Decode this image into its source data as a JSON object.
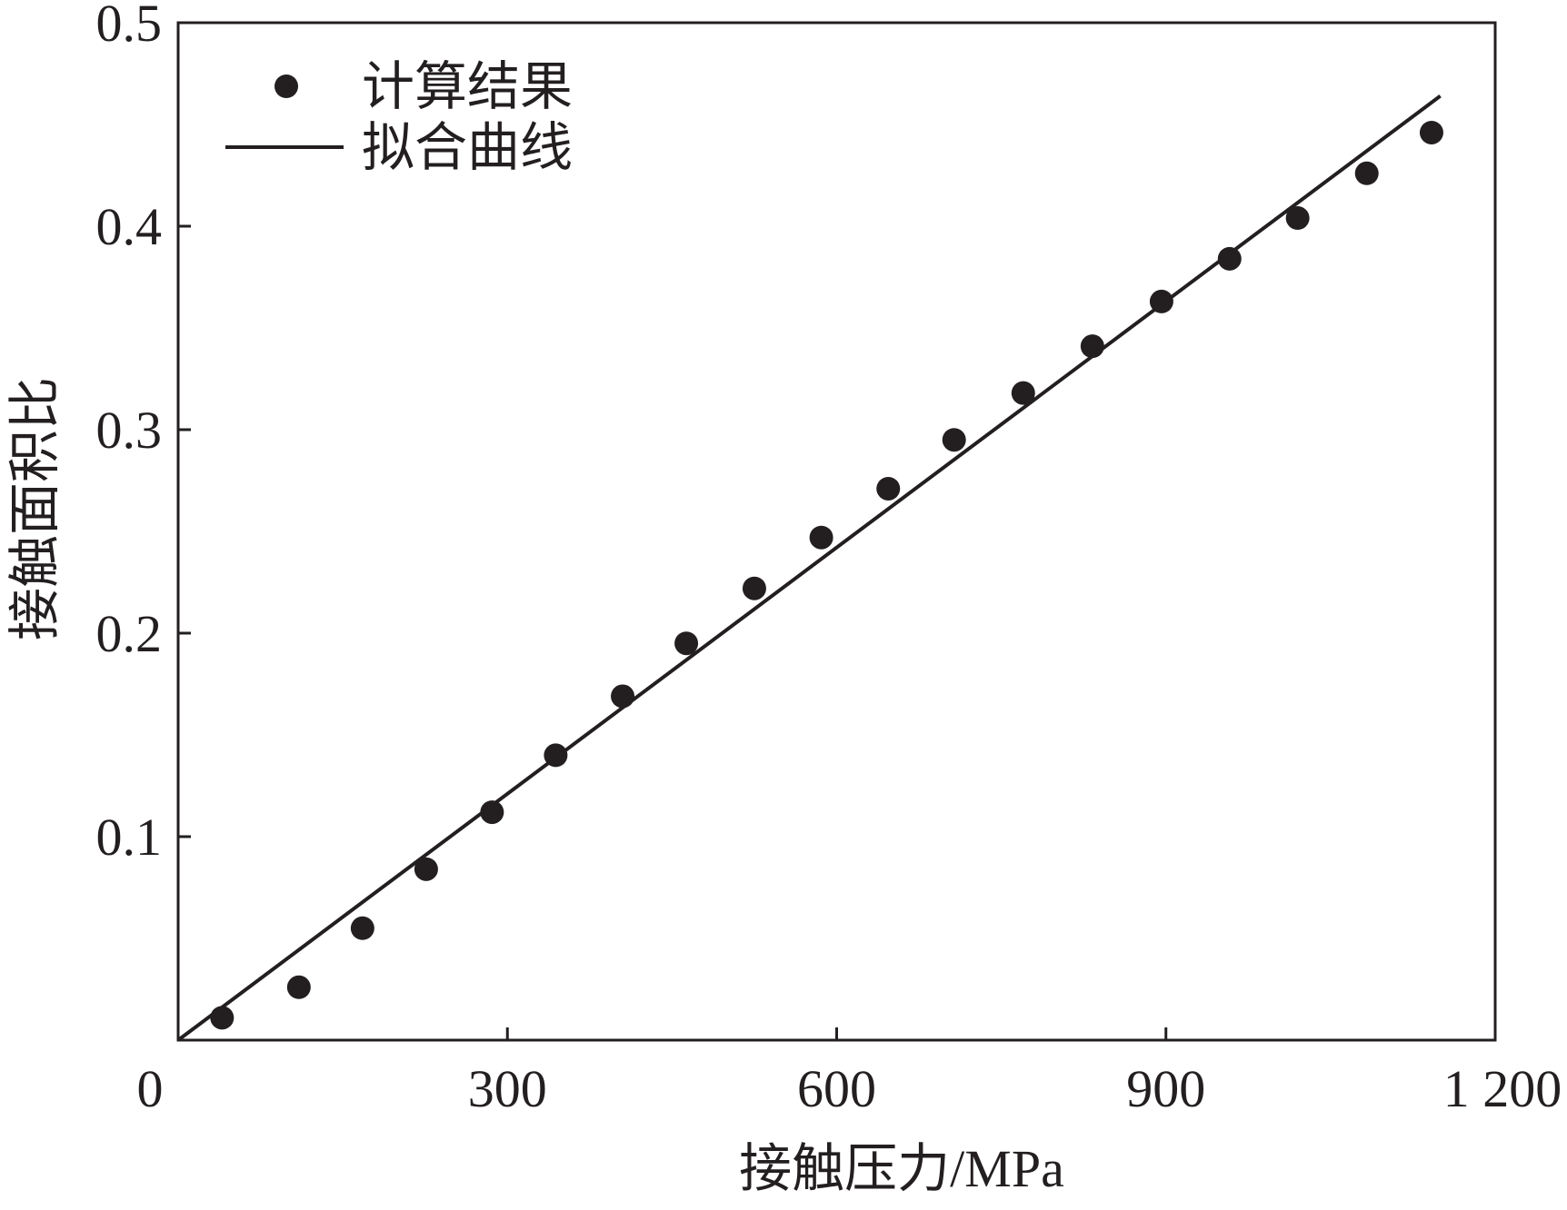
{
  "chart_data": {
    "type": "scatter",
    "title": "",
    "xlabel": "接触压力/MPa",
    "ylabel": "接触面积比",
    "xlim": [
      0,
      1200
    ],
    "ylim": [
      0,
      0.5
    ],
    "x_origin": 0,
    "x_ticks": [
      {
        "value": 300,
        "label": "300"
      },
      {
        "value": 600,
        "label": "600"
      },
      {
        "value": 900,
        "label": "900"
      },
      {
        "value": 1200,
        "label": "1 200"
      }
    ],
    "x_zero_label": "0",
    "y_ticks": [
      {
        "value": 0.1,
        "label": "0.1"
      },
      {
        "value": 0.2,
        "label": "0.2"
      },
      {
        "value": 0.3,
        "label": "0.3"
      },
      {
        "value": 0.4,
        "label": "0.4"
      },
      {
        "value": 0.5,
        "label": "0.5"
      }
    ],
    "grid": false,
    "legend_position": "top-left",
    "series": [
      {
        "name": "计算结果",
        "kind": "scatter",
        "color": "#231f20",
        "points": [
          {
            "x": 40,
            "y": 0.011
          },
          {
            "x": 110,
            "y": 0.026
          },
          {
            "x": 168,
            "y": 0.055
          },
          {
            "x": 226,
            "y": 0.084
          },
          {
            "x": 286,
            "y": 0.112
          },
          {
            "x": 344,
            "y": 0.14
          },
          {
            "x": 405,
            "y": 0.169
          },
          {
            "x": 463,
            "y": 0.195
          },
          {
            "x": 525,
            "y": 0.222
          },
          {
            "x": 586,
            "y": 0.247
          },
          {
            "x": 647,
            "y": 0.271
          },
          {
            "x": 707,
            "y": 0.295
          },
          {
            "x": 770,
            "y": 0.318
          },
          {
            "x": 833,
            "y": 0.341
          },
          {
            "x": 896,
            "y": 0.363
          },
          {
            "x": 958,
            "y": 0.384
          },
          {
            "x": 1020,
            "y": 0.404
          },
          {
            "x": 1083,
            "y": 0.426
          },
          {
            "x": 1142,
            "y": 0.446
          }
        ]
      },
      {
        "name": "拟合曲线",
        "kind": "line",
        "color": "#231f20",
        "points": [
          {
            "x": 0,
            "y": 0.0
          },
          {
            "x": 1150,
            "y": 0.464
          }
        ]
      }
    ]
  }
}
